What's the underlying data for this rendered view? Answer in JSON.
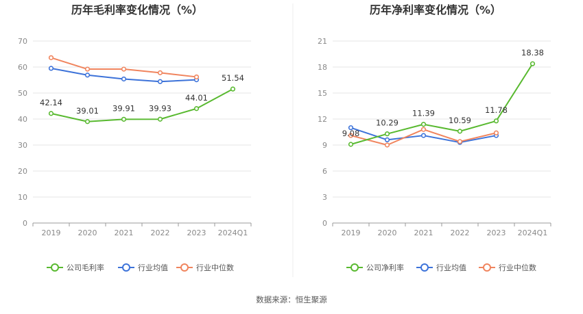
{
  "colors": {
    "company": "#58b92f",
    "industry_avg": "#3c72d9",
    "industry_median": "#f0845d",
    "grid": "#e6e6e6",
    "axis": "#999999"
  },
  "chart_data": [
    {
      "type": "line",
      "title": "历年毛利率变化情况（%）",
      "categories": [
        "2019",
        "2020",
        "2021",
        "2022",
        "2023",
        "2024Q1"
      ],
      "ylim": [
        0,
        70
      ],
      "yticks": [
        0,
        10,
        20,
        30,
        40,
        50,
        60,
        70
      ],
      "grid": true,
      "legend_position": "bottom",
      "series": [
        {
          "name": "公司毛利率",
          "key": "company",
          "values": [
            42.14,
            39.01,
            39.91,
            39.93,
            44.01,
            51.54
          ],
          "labels": [
            "42.14",
            "39.01",
            "39.91",
            "39.93",
            "44.01",
            "51.54"
          ]
        },
        {
          "name": "行业均值",
          "key": "industry_avg",
          "values": [
            59.5,
            56.9,
            55.4,
            54.4,
            55.1,
            null
          ]
        },
        {
          "name": "行业中位数",
          "key": "industry_median",
          "values": [
            63.6,
            59.2,
            59.2,
            57.8,
            56.2,
            null
          ]
        }
      ]
    },
    {
      "type": "line",
      "title": "历年净利率变化情况（%）",
      "categories": [
        "2019",
        "2020",
        "2021",
        "2022",
        "2023",
        "2024Q1"
      ],
      "ylim": [
        0,
        21
      ],
      "yticks": [
        0,
        3,
        6,
        9,
        12,
        15,
        18,
        21
      ],
      "grid": true,
      "legend_position": "bottom",
      "series": [
        {
          "name": "公司净利率",
          "key": "company",
          "values": [
            9.08,
            10.29,
            11.39,
            10.59,
            11.78,
            18.38
          ],
          "labels": [
            "9.08",
            "10.29",
            "11.39",
            "10.59",
            "11.78",
            "18.38"
          ]
        },
        {
          "name": "行业均值",
          "key": "industry_avg",
          "values": [
            11.0,
            9.6,
            10.1,
            9.3,
            10.1,
            null
          ]
        },
        {
          "name": "行业中位数",
          "key": "industry_median",
          "values": [
            10.1,
            9.0,
            10.8,
            9.4,
            10.4,
            null
          ]
        }
      ]
    }
  ],
  "source_text": "数据来源：恒生聚源"
}
